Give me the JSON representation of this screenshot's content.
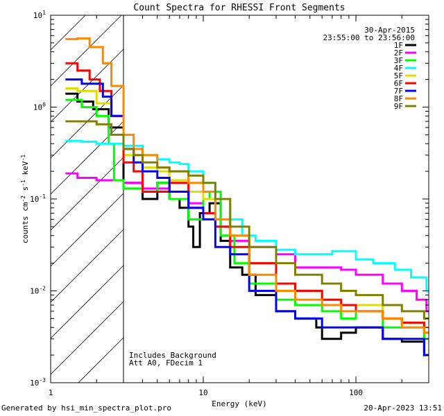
{
  "chart_data": {
    "type": "line",
    "title": "Count Spectra for RHESSI Front Segments",
    "xlabel": "Energy (keV)",
    "ylabel": "counts cm-2 s-1 keV-1",
    "xscale": "log",
    "yscale": "log",
    "xlim": [
      1,
      300
    ],
    "ylim": [
      0.001,
      10
    ],
    "x_tick_labels": [
      {
        "value": 1,
        "label": "1"
      },
      {
        "value": 10,
        "label": "10"
      },
      {
        "value": 100,
        "label": "100"
      }
    ],
    "y_tick_labels": [
      {
        "value": 10,
        "base": "10",
        "exp": "1"
      },
      {
        "value": 1,
        "base": "10",
        "exp": "0"
      },
      {
        "value": 0.1,
        "base": "10",
        "exp": "-1"
      },
      {
        "value": 0.01,
        "base": "10",
        "exp": "-2"
      },
      {
        "value": 0.001,
        "base": "10",
        "exp": "-3"
      }
    ],
    "date_label": "30-Apr-2015",
    "time_range_label": "23:55:00 to 23:56:00",
    "shaded_region_max_energy": 3,
    "annotations": [
      "Includes Background",
      "Att A0, FDecim 1"
    ],
    "series": [
      {
        "name": "1F",
        "color": "#000000",
        "points": [
          [
            1.25,
            1.4
          ],
          [
            1.5,
            1.15
          ],
          [
            1.9,
            0.95
          ],
          [
            2.4,
            0.6
          ],
          [
            3,
            0.15
          ],
          [
            4,
            0.1
          ],
          [
            5,
            0.15
          ],
          [
            6,
            0.1
          ],
          [
            7,
            0.08
          ],
          [
            8,
            0.05
          ],
          [
            8.6,
            0.03
          ],
          [
            9.5,
            0.07
          ],
          [
            11,
            0.09
          ],
          [
            13,
            0.035
          ],
          [
            15,
            0.018
          ],
          [
            18,
            0.015
          ],
          [
            22,
            0.009
          ],
          [
            30,
            0.006
          ],
          [
            40,
            0.005
          ],
          [
            55,
            0.004
          ],
          [
            60,
            0.003
          ],
          [
            80,
            0.0035
          ],
          [
            100,
            0.004
          ],
          [
            150,
            0.003
          ],
          [
            200,
            0.0028
          ],
          [
            280,
            0.002
          ]
        ]
      },
      {
        "name": "2F",
        "color": "#ff00ff",
        "points": [
          [
            1.25,
            0.19
          ],
          [
            1.5,
            0.17
          ],
          [
            2,
            0.16
          ],
          [
            2.6,
            0.16
          ],
          [
            3,
            0.15
          ],
          [
            4,
            0.13
          ],
          [
            5,
            0.13
          ],
          [
            6,
            0.12
          ],
          [
            8,
            0.09
          ],
          [
            10,
            0.07
          ],
          [
            12,
            0.05
          ],
          [
            15,
            0.035
          ],
          [
            20,
            0.03
          ],
          [
            30,
            0.025
          ],
          [
            40,
            0.018
          ],
          [
            60,
            0.018
          ],
          [
            80,
            0.017
          ],
          [
            100,
            0.015
          ],
          [
            150,
            0.012
          ],
          [
            200,
            0.01
          ],
          [
            250,
            0.008
          ],
          [
            290,
            0.006
          ]
        ]
      },
      {
        "name": "3F",
        "color": "#00ff00",
        "points": [
          [
            1.25,
            1.2
          ],
          [
            1.6,
            1.0
          ],
          [
            2.0,
            0.8
          ],
          [
            2.4,
            0.4
          ],
          [
            2.6,
            0.16
          ],
          [
            3,
            0.13
          ],
          [
            4,
            0.12
          ],
          [
            5,
            0.15
          ],
          [
            6,
            0.1
          ],
          [
            8,
            0.06
          ],
          [
            10,
            0.1
          ],
          [
            11,
            0.12
          ],
          [
            13,
            0.04
          ],
          [
            16,
            0.02
          ],
          [
            20,
            0.012
          ],
          [
            30,
            0.008
          ],
          [
            40,
            0.007
          ],
          [
            60,
            0.006
          ],
          [
            80,
            0.005
          ],
          [
            100,
            0.006
          ],
          [
            150,
            0.004
          ],
          [
            200,
            0.004
          ],
          [
            280,
            0.003
          ]
        ]
      },
      {
        "name": "4F",
        "color": "#00ffff",
        "points": [
          [
            1.25,
            0.43
          ],
          [
            1.6,
            0.42
          ],
          [
            2,
            0.4
          ],
          [
            3,
            0.38
          ],
          [
            4,
            0.3
          ],
          [
            5,
            0.27
          ],
          [
            6,
            0.25
          ],
          [
            7,
            0.24
          ],
          [
            8,
            0.2
          ],
          [
            10,
            0.15
          ],
          [
            12,
            0.1
          ],
          [
            15,
            0.06
          ],
          [
            18,
            0.04
          ],
          [
            22,
            0.035
          ],
          [
            30,
            0.028
          ],
          [
            40,
            0.025
          ],
          [
            50,
            0.025
          ],
          [
            70,
            0.027
          ],
          [
            100,
            0.022
          ],
          [
            130,
            0.02
          ],
          [
            180,
            0.017
          ],
          [
            230,
            0.014
          ],
          [
            290,
            0.01
          ]
        ]
      },
      {
        "name": "5F",
        "color": "#dddd00",
        "points": [
          [
            1.25,
            1.6
          ],
          [
            1.5,
            1.5
          ],
          [
            2,
            1.1
          ],
          [
            2.5,
            0.8
          ],
          [
            3,
            0.3
          ],
          [
            4,
            0.22
          ],
          [
            5,
            0.2
          ],
          [
            6,
            0.16
          ],
          [
            8,
            0.12
          ],
          [
            10,
            0.1
          ],
          [
            12,
            0.06
          ],
          [
            15,
            0.03
          ],
          [
            20,
            0.02
          ],
          [
            30,
            0.012
          ],
          [
            40,
            0.01
          ],
          [
            60,
            0.008
          ],
          [
            80,
            0.007
          ],
          [
            100,
            0.007
          ],
          [
            150,
            0.005
          ],
          [
            200,
            0.0045
          ],
          [
            280,
            0.004
          ]
        ]
      },
      {
        "name": "6F",
        "color": "#ff0000",
        "points": [
          [
            1.25,
            3.0
          ],
          [
            1.5,
            2.5
          ],
          [
            1.8,
            2.0
          ],
          [
            2.1,
            1.5
          ],
          [
            2.5,
            0.8
          ],
          [
            3,
            0.25
          ],
          [
            3.5,
            0.2
          ],
          [
            4,
            0.12
          ],
          [
            5,
            0.12
          ],
          [
            6,
            0.15
          ],
          [
            8,
            0.08
          ],
          [
            10,
            0.07
          ],
          [
            12,
            0.05
          ],
          [
            15,
            0.03
          ],
          [
            20,
            0.02
          ],
          [
            30,
            0.012
          ],
          [
            40,
            0.01
          ],
          [
            60,
            0.008
          ],
          [
            80,
            0.007
          ],
          [
            100,
            0.006
          ],
          [
            150,
            0.005
          ],
          [
            200,
            0.0045
          ],
          [
            280,
            0.0035
          ]
        ]
      },
      {
        "name": "7F",
        "color": "#0000ff",
        "points": [
          [
            1.25,
            2.0
          ],
          [
            1.6,
            1.8
          ],
          [
            2.2,
            1.3
          ],
          [
            2.5,
            0.8
          ],
          [
            3,
            0.35
          ],
          [
            3.5,
            0.25
          ],
          [
            4,
            0.2
          ],
          [
            5,
            0.17
          ],
          [
            6,
            0.12
          ],
          [
            8,
            0.08
          ],
          [
            10,
            0.06
          ],
          [
            12,
            0.03
          ],
          [
            15,
            0.025
          ],
          [
            20,
            0.01
          ],
          [
            30,
            0.006
          ],
          [
            40,
            0.005
          ],
          [
            60,
            0.004
          ],
          [
            80,
            0.004
          ],
          [
            100,
            0.004
          ],
          [
            150,
            0.003
          ],
          [
            200,
            0.003
          ],
          [
            280,
            0.002
          ]
        ]
      },
      {
        "name": "8F",
        "color": "#ff8800",
        "points": [
          [
            1.25,
            5.5
          ],
          [
            1.5,
            5.6
          ],
          [
            1.8,
            4.5
          ],
          [
            2.2,
            3.0
          ],
          [
            2.5,
            1.7
          ],
          [
            3,
            0.5
          ],
          [
            3.5,
            0.35
          ],
          [
            4,
            0.3
          ],
          [
            5,
            0.22
          ],
          [
            6,
            0.2
          ],
          [
            8,
            0.15
          ],
          [
            10,
            0.12
          ],
          [
            12,
            0.06
          ],
          [
            15,
            0.04
          ],
          [
            20,
            0.015
          ],
          [
            30,
            0.01
          ],
          [
            40,
            0.008
          ],
          [
            60,
            0.007
          ],
          [
            80,
            0.006
          ],
          [
            100,
            0.006
          ],
          [
            150,
            0.005
          ],
          [
            200,
            0.004
          ],
          [
            280,
            0.0035
          ]
        ]
      },
      {
        "name": "9F",
        "color": "#808000",
        "points": [
          [
            1.25,
            0.7
          ],
          [
            1.6,
            0.7
          ],
          [
            2,
            0.65
          ],
          [
            2.5,
            0.5
          ],
          [
            3,
            0.35
          ],
          [
            3.5,
            0.3
          ],
          [
            4,
            0.25
          ],
          [
            5,
            0.22
          ],
          [
            6,
            0.2
          ],
          [
            8,
            0.18
          ],
          [
            10,
            0.15
          ],
          [
            12,
            0.1
          ],
          [
            15,
            0.05
          ],
          [
            20,
            0.03
          ],
          [
            30,
            0.02
          ],
          [
            40,
            0.015
          ],
          [
            60,
            0.012
          ],
          [
            80,
            0.01
          ],
          [
            100,
            0.009
          ],
          [
            150,
            0.007
          ],
          [
            200,
            0.006
          ],
          [
            280,
            0.005
          ]
        ]
      }
    ]
  },
  "footer": {
    "generated_by": "Generated by hsi_min_spectra_plot.pro",
    "date": "20-Apr-2023 13:51"
  }
}
